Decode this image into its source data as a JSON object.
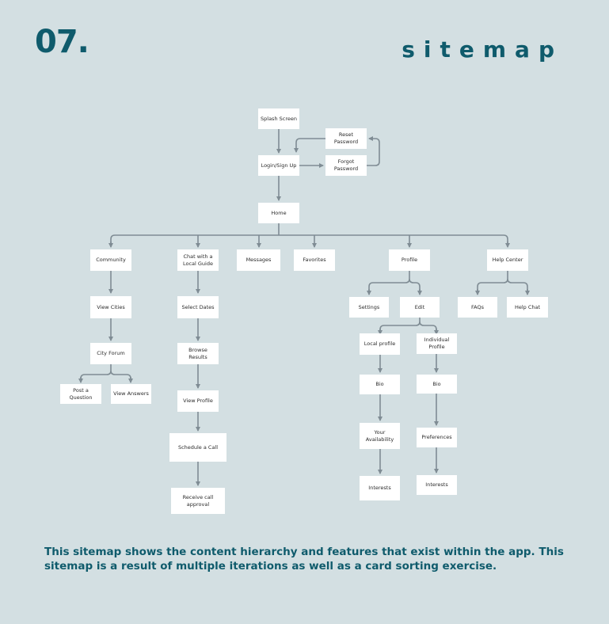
{
  "header": {
    "section_number": "07.",
    "title": "sitemap"
  },
  "nodes": {
    "splash": "Splash Screen",
    "reset_password": "Reset\nPassword",
    "login": "Login/Sign Up",
    "forgot_password": "Forgot\nPassword",
    "home": "Home",
    "community": "Community",
    "chat_local_guide": "Chat with a\nLocal Guide",
    "messages": "Messages",
    "favorites": "Favorites",
    "profile": "Profile",
    "help_center": "Help Center",
    "view_cities": "View Cities",
    "select_dates": "Select Dates",
    "settings": "Settings",
    "edit": "Edit",
    "faqs": "FAQs",
    "help_chat": "Help Chat",
    "city_forum": "City Forum",
    "browse_results": "Browse\nResults",
    "local_profile": "Local profile",
    "individual_profile": "Individual\nProfile",
    "post_question": "Post a\nQuestion",
    "view_answers": "View Answers",
    "view_profile": "View Profile",
    "local_bio": "Bio",
    "individual_bio": "Bio",
    "your_availability": "Your\nAvailability",
    "preferences": "Preferences",
    "schedule_call": "Schedule a Call",
    "local_interests": "Interests",
    "individual_interests": "Interests",
    "receive_call_approval": "Receive call approval"
  },
  "caption": "This sitemap shows the content hierarchy and features that exist within the app. This sitemap is a result of multiple iterations as well as a card sorting exercise.",
  "colors": {
    "background": "#d3dfe2",
    "accent": "#0f5b6c",
    "connector": "#7f8c94",
    "node_fill": "#ffffff"
  }
}
